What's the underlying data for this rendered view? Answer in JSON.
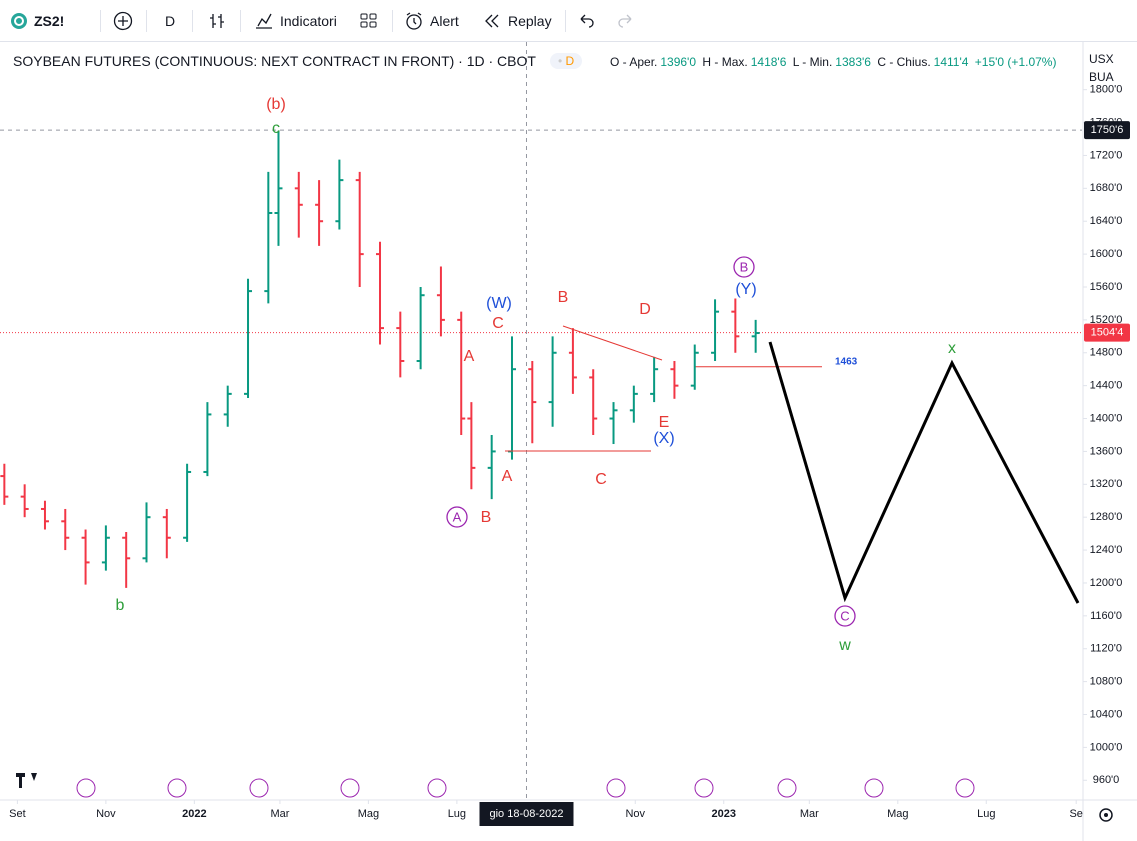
{
  "toolbar": {
    "symbol": "ZS2!",
    "interval": "D",
    "indicators": "Indicatori",
    "alert": "Alert",
    "replay": "Replay"
  },
  "chart_data": {
    "type": "ohlc",
    "title": "SOYBEAN FUTURES (CONTINUOUS: NEXT CONTRACT IN FRONT) · 1D · CBOT",
    "badge": "D",
    "legend": {
      "open_label": "O - Aper.",
      "open": "1396'0",
      "high_label": "H - Max.",
      "high": "1418'6",
      "low_label": "L - Min.",
      "low": "1383'6",
      "close_label": "C - Chius.",
      "close": "1411'4",
      "change": "+15'0 (+1.07%)",
      "color": "#089981"
    },
    "currency": "USX",
    "unit": "BUA",
    "up_color": "#089981",
    "down_color": "#f23645",
    "x": [
      "2021-08-23",
      "2021-09-06",
      "2021-09-20",
      "2021-10-04",
      "2021-10-18",
      "2021-11-01",
      "2021-11-15",
      "2021-11-29",
      "2021-12-13",
      "2021-12-27",
      "2022-01-10",
      "2022-01-24",
      "2022-02-07",
      "2022-02-21",
      "2022-02-28",
      "2022-03-14",
      "2022-03-28",
      "2022-04-11",
      "2022-04-25",
      "2022-05-09",
      "2022-05-23",
      "2022-06-06",
      "2022-06-20",
      "2022-07-04",
      "2022-07-11",
      "2022-07-25",
      "2022-08-08",
      "2022-08-22",
      "2022-09-05",
      "2022-09-19",
      "2022-10-03",
      "2022-10-17",
      "2022-10-31",
      "2022-11-14",
      "2022-11-28",
      "2022-12-12",
      "2022-12-26",
      "2023-01-09",
      "2023-01-23"
    ],
    "open": [
      1330,
      1305,
      1290,
      1275,
      1255,
      1225,
      1255,
      1230,
      1280,
      1255,
      1335,
      1405,
      1430,
      1555,
      1650,
      1680,
      1660,
      1640,
      1690,
      1600,
      1510,
      1470,
      1550,
      1520,
      1400,
      1340,
      1360,
      1460,
      1420,
      1480,
      1450,
      1400,
      1410,
      1430,
      1460,
      1440,
      1480,
      1530,
      1500
    ],
    "high": [
      1345,
      1320,
      1300,
      1290,
      1265,
      1270,
      1262,
      1298,
      1290,
      1345,
      1420,
      1440,
      1570,
      1700,
      1750,
      1700,
      1690,
      1715,
      1700,
      1615,
      1530,
      1560,
      1585,
      1530,
      1420,
      1380,
      1500,
      1470,
      1500,
      1510,
      1460,
      1420,
      1440,
      1475,
      1470,
      1490,
      1545,
      1546,
      1520
    ],
    "low": [
      1295,
      1280,
      1265,
      1240,
      1198,
      1215,
      1194,
      1225,
      1230,
      1250,
      1330,
      1390,
      1425,
      1540,
      1610,
      1620,
      1610,
      1630,
      1560,
      1490,
      1450,
      1460,
      1500,
      1380,
      1314,
      1302,
      1350,
      1370,
      1390,
      1430,
      1380,
      1369,
      1395,
      1420,
      1424,
      1435,
      1470,
      1480,
      1480
    ],
    "close": [
      1305,
      1290,
      1275,
      1255,
      1225,
      1255,
      1230,
      1280,
      1255,
      1335,
      1405,
      1430,
      1555,
      1650,
      1680,
      1660,
      1640,
      1690,
      1600,
      1510,
      1470,
      1550,
      1520,
      1400,
      1340,
      1360,
      1460,
      1420,
      1480,
      1450,
      1400,
      1410,
      1430,
      1460,
      1440,
      1480,
      1530,
      1500,
      1504
    ],
    "xlim": [
      "2021-08-20",
      "2023-09-05"
    ],
    "xticks": [
      {
        "value": "2021-09-01",
        "label": "Set"
      },
      {
        "value": "2021-11-01",
        "label": "Nov"
      },
      {
        "value": "2022-01-01",
        "label": "2022"
      },
      {
        "value": "2022-03-01",
        "label": "Mar"
      },
      {
        "value": "2022-05-01",
        "label": "Mag"
      },
      {
        "value": "2022-07-01",
        "label": "Lug"
      },
      {
        "value": "2022-11-01",
        "label": "Nov"
      },
      {
        "value": "2023-01-01",
        "label": "2023"
      },
      {
        "value": "2023-03-01",
        "label": "Mar"
      },
      {
        "value": "2023-05-01",
        "label": "Mag"
      },
      {
        "value": "2023-07-01",
        "label": "Lug"
      },
      {
        "value": "2023-09-01",
        "label": "Se"
      }
    ],
    "ylim": [
      936,
      1858
    ],
    "yticks": [
      {
        "value": 960,
        "label": "960'0"
      },
      {
        "value": 1000,
        "label": "1000'0"
      },
      {
        "value": 1040,
        "label": "1040'0"
      },
      {
        "value": 1080,
        "label": "1080'0"
      },
      {
        "value": 1120,
        "label": "1120'0"
      },
      {
        "value": 1160,
        "label": "1160'0"
      },
      {
        "value": 1200,
        "label": "1200'0"
      },
      {
        "value": 1240,
        "label": "1240'0"
      },
      {
        "value": 1280,
        "label": "1280'0"
      },
      {
        "value": 1320,
        "label": "1320'0"
      },
      {
        "value": 1360,
        "label": "1360'0"
      },
      {
        "value": 1400,
        "label": "1400'0"
      },
      {
        "value": 1440,
        "label": "1440'0"
      },
      {
        "value": 1480,
        "label": "1480'0"
      },
      {
        "value": 1520,
        "label": "1520'0"
      },
      {
        "value": 1560,
        "label": "1560'0"
      },
      {
        "value": 1600,
        "label": "1600'0"
      },
      {
        "value": 1640,
        "label": "1640'0"
      },
      {
        "value": 1680,
        "label": "1680'0"
      },
      {
        "value": 1720,
        "label": "1720'0"
      },
      {
        "value": 1760,
        "label": "1760'0"
      },
      {
        "value": 1800,
        "label": "1800'0"
      }
    ],
    "crosshair": {
      "date": "2022-08-18",
      "date_label": "gio 18-08-2022",
      "price": {
        "value": 1750.75,
        "label": "1750'6"
      }
    },
    "last_price": {
      "value": 1504.5,
      "label": "1504'4",
      "color": "#f23645"
    },
    "level": 1463,
    "annotations": [
      {
        "text": "(b)",
        "color": "#e53935"
      },
      {
        "text": "c",
        "color": "#2e9e3a"
      },
      {
        "text": "b",
        "color": "#2e9e3a"
      },
      {
        "text": "(W)",
        "color": "#1e4fd8"
      },
      {
        "text": "C",
        "color": "#e53935"
      },
      {
        "text": "A",
        "color": "#e53935"
      },
      {
        "text": "A",
        "color": "#9c27b0",
        "circled": true
      },
      {
        "text": "B",
        "color": "#e53935"
      },
      {
        "text": "A",
        "color": "#e53935"
      },
      {
        "text": "B",
        "color": "#e53935"
      },
      {
        "text": "C",
        "color": "#e53935"
      },
      {
        "text": "D",
        "color": "#e53935"
      },
      {
        "text": "E",
        "color": "#e53935"
      },
      {
        "text": "(X)",
        "color": "#1e4fd8"
      },
      {
        "text": "B",
        "color": "#9c27b0",
        "circled": true
      },
      {
        "text": "(Y)",
        "color": "#1e4fd8"
      },
      {
        "text": "C",
        "color": "#9c27b0",
        "circled": true
      },
      {
        "text": "w",
        "color": "#2e9e3a"
      },
      {
        "text": "x",
        "color": "#2e9e3a"
      }
    ]
  }
}
